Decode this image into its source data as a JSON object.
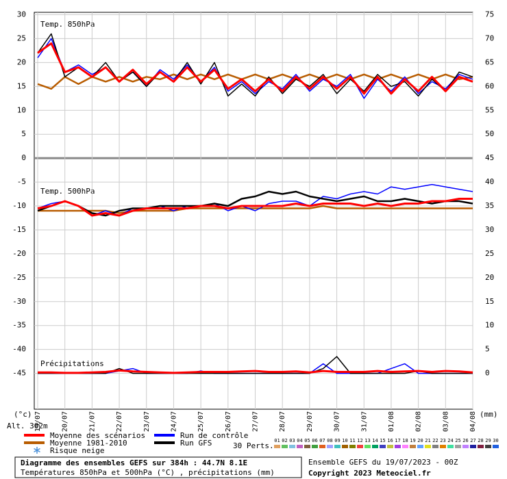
{
  "chart_data": {
    "type": "line",
    "ylim": [
      -52.5,
      30.5
    ],
    "yticks": [
      30,
      25,
      20,
      15,
      10,
      5,
      0,
      -5,
      -10,
      -15,
      -20,
      -25,
      -30,
      -35,
      -40,
      -45
    ],
    "y2lim": [
      -7.5,
      75.5
    ],
    "y2ticks": [
      75,
      70,
      65,
      60,
      55,
      50,
      45,
      40,
      35,
      30,
      25,
      20,
      15,
      10,
      5,
      0
    ],
    "grid": true,
    "y_unit": "(°c)",
    "y2_unit": "(mm)",
    "altitude": "Alt. 302m",
    "panel_labels": [
      "Temp. 850hPa",
      "Temp. 500hPa",
      "Précipitations"
    ],
    "categories": [
      "19/07",
      null,
      "20/07",
      null,
      "21/07",
      null,
      "22/07",
      null,
      "23/07",
      null,
      "24/07",
      null,
      "25/07",
      null,
      "26/07",
      null,
      "27/07",
      null,
      "28/07",
      null,
      "29/07",
      null,
      "30/07",
      null,
      "31/07",
      null,
      "01/08",
      null,
      "02/08",
      null,
      "03/08",
      null,
      "04/08"
    ],
    "series": [
      {
        "name": "Moyenne 1981-2010",
        "color": "#b85c00",
        "width": 2.5,
        "values": [
          15.5,
          14.5,
          17,
          15.5,
          17,
          16,
          17,
          16,
          17,
          16.5,
          17.5,
          16.5,
          17.5,
          16.5,
          17.5,
          16.5,
          17.5,
          16.5,
          17.5,
          16.5,
          17.5,
          16.5,
          17.5,
          16.5,
          17.5,
          16.5,
          17.5,
          16.5,
          17.5,
          16.5,
          17.5,
          16.5,
          17
        ]
      },
      {
        "name": "Run de contrôle",
        "color": "#0000ff",
        "width": 1.5,
        "values": [
          21,
          25,
          18,
          19.5,
          17.5,
          19,
          16,
          18,
          15,
          18.5,
          16.5,
          19.5,
          16,
          19,
          14,
          16,
          13.5,
          16,
          14.5,
          17.5,
          14,
          16.5,
          15,
          17.5,
          12.5,
          16.5,
          14,
          17,
          13.5,
          16,
          14.5,
          17.5,
          16.5
        ]
      },
      {
        "name": "Run GFS",
        "color": "#000000",
        "width": 1.5,
        "values": [
          22,
          26,
          17,
          19,
          17,
          20,
          16,
          18,
          15,
          18,
          16,
          20,
          15.5,
          20,
          13,
          15.5,
          13,
          17,
          13.5,
          16.5,
          15,
          17.5,
          13.5,
          16.5,
          14,
          17.5,
          15,
          16,
          13,
          16.5,
          14,
          18,
          17
        ]
      },
      {
        "name": "Moyenne des scénarios",
        "color": "#ff0000",
        "width": 3,
        "values": [
          22,
          24,
          18,
          19,
          17,
          19,
          16,
          18.5,
          15.5,
          18,
          16,
          19,
          16,
          18.5,
          14.5,
          16.5,
          14,
          16.5,
          14,
          17,
          14.5,
          17,
          14.5,
          17,
          13.5,
          17,
          13.5,
          16.5,
          14,
          17,
          14,
          17,
          16
        ]
      },
      {
        "name": "Moyenne 1981-2010",
        "color": "#b85c00",
        "width": 2.5,
        "values": [
          -11,
          -11,
          -11,
          -11,
          -11,
          -11,
          -11.5,
          -11,
          -11,
          -11,
          -11,
          -10.5,
          -10.5,
          -10.5,
          -10.5,
          -10.5,
          -10.5,
          -10.5,
          -10.5,
          -10.5,
          -10.5,
          -10,
          -10.5,
          -10.5,
          -10.5,
          -10.5,
          -10.5,
          -10.5,
          -10.5,
          -10.5,
          -10.5,
          -10.5,
          -10.5
        ]
      },
      {
        "name": "Run de contrôle",
        "color": "#0000ff",
        "width": 1.5,
        "values": [
          -10.5,
          -9.5,
          -9,
          -10,
          -12,
          -11,
          -12,
          -10.5,
          -10.5,
          -10,
          -11,
          -10,
          -10,
          -9.5,
          -11,
          -10,
          -11,
          -9.5,
          -9,
          -9,
          -10,
          -8,
          -8.5,
          -7.5,
          -7,
          -7.5,
          -6,
          -6.5,
          -6,
          -5.5,
          -6,
          -6.5,
          -7
        ]
      },
      {
        "name": "Run GFS",
        "color": "#000000",
        "width": 2.5,
        "values": [
          -11,
          -10,
          -9,
          -10,
          -11.5,
          -12,
          -11,
          -10.5,
          -10.5,
          -10,
          -10,
          -10,
          -10,
          -9.5,
          -10,
          -8.5,
          -8,
          -7,
          -7.5,
          -7,
          -8,
          -8.5,
          -9,
          -8.5,
          -8,
          -9,
          -9,
          -8.5,
          -9,
          -9.5,
          -9,
          -9,
          -9.5
        ]
      },
      {
        "name": "Moyenne des scénarios",
        "color": "#ff0000",
        "width": 3,
        "values": [
          -10.5,
          -10,
          -9,
          -10,
          -12,
          -11.5,
          -12,
          -11,
          -10.5,
          -10.5,
          -10.5,
          -10.5,
          -10,
          -10,
          -10.5,
          -10,
          -10,
          -10,
          -10,
          -9.5,
          -10,
          -9.5,
          -9.5,
          -9.5,
          -10,
          -9.5,
          -10,
          -9.5,
          -9.5,
          -9,
          -9,
          -8.5,
          -8.5
        ]
      },
      {
        "name": "Run de contrôle",
        "color": "#0000ff",
        "width": 1.5,
        "axis": "y2",
        "values": [
          0,
          0,
          0,
          0,
          0,
          0,
          0.5,
          1,
          0,
          0,
          0,
          0,
          0.5,
          0,
          0,
          0,
          0,
          0,
          0,
          0,
          0,
          2,
          0,
          0,
          0,
          0,
          1,
          2,
          0,
          0,
          0,
          0,
          0
        ]
      },
      {
        "name": "Run GFS",
        "color": "#000000",
        "width": 1.5,
        "axis": "y2",
        "values": [
          0,
          0,
          0,
          0,
          0,
          0,
          1,
          0,
          0,
          0,
          0,
          0,
          0,
          0,
          0,
          0,
          0,
          0,
          0,
          0,
          0,
          1,
          3.5,
          0,
          0,
          0,
          0,
          0,
          0.5,
          0,
          0,
          0,
          0
        ]
      },
      {
        "name": "Moyenne des scénarios",
        "color": "#ff0000",
        "width": 3,
        "axis": "y2",
        "values": [
          0.2,
          0.2,
          0.1,
          0.1,
          0.2,
          0.3,
          0.6,
          0.4,
          0.3,
          0.2,
          0.1,
          0.2,
          0.3,
          0.3,
          0.3,
          0.4,
          0.5,
          0.3,
          0.3,
          0.4,
          0.2,
          0.5,
          0.3,
          0.3,
          0.3,
          0.5,
          0.3,
          0.4,
          0.5,
          0.3,
          0.5,
          0.4,
          0.2
        ]
      }
    ],
    "legend": {
      "snow": "Risque neige",
      "perts_label": "30 Perts.",
      "perts": [
        {
          "label": "01",
          "color": "#e0a060"
        },
        {
          "label": "02",
          "color": "#60c060"
        },
        {
          "label": "03",
          "color": "#80c0e0"
        },
        {
          "label": "04",
          "color": "#c060c0"
        },
        {
          "label": "05",
          "color": "#806040"
        },
        {
          "label": "06",
          "color": "#40a040"
        },
        {
          "label": "07",
          "color": "#e06020"
        },
        {
          "label": "08",
          "color": "#a0a0ff"
        },
        {
          "label": "09",
          "color": "#40c0c0"
        },
        {
          "label": "10",
          "color": "#a06000"
        },
        {
          "label": "11",
          "color": "#808000"
        },
        {
          "label": "12",
          "color": "#f04040"
        },
        {
          "label": "13",
          "color": "#60e060"
        },
        {
          "label": "14",
          "color": "#00a060"
        },
        {
          "label": "15",
          "color": "#4040c0"
        },
        {
          "label": "16",
          "color": "#c0c040"
        },
        {
          "label": "17",
          "color": "#a040e0"
        },
        {
          "label": "18",
          "color": "#ff80ff"
        },
        {
          "label": "19",
          "color": "#c08040"
        },
        {
          "label": "20",
          "color": "#60a0ff"
        },
        {
          "label": "21",
          "color": "#e0e020"
        },
        {
          "label": "22",
          "color": "#808080"
        },
        {
          "label": "23",
          "color": "#e08000"
        },
        {
          "label": "24",
          "color": "#40e0a0"
        },
        {
          "label": "25",
          "color": "#a0a0a0"
        },
        {
          "label": "26",
          "color": "#c080ff"
        },
        {
          "label": "27",
          "color": "#2020a0"
        },
        {
          "label": "28",
          "color": "#802040"
        },
        {
          "label": "29",
          "color": "#404040"
        },
        {
          "label": "30",
          "color": "#2060e0"
        }
      ]
    },
    "title": "Diagramme des ensembles GEFS sur 384h : 44.7N 8.1E",
    "subtitle": "Températures 850hPa et 500hPa (°C) , précipitations (mm)",
    "run_info": "Ensemble GEFS du 19/07/2023 - 00Z",
    "copyright": "Copyright 2023 Meteociel.fr"
  }
}
